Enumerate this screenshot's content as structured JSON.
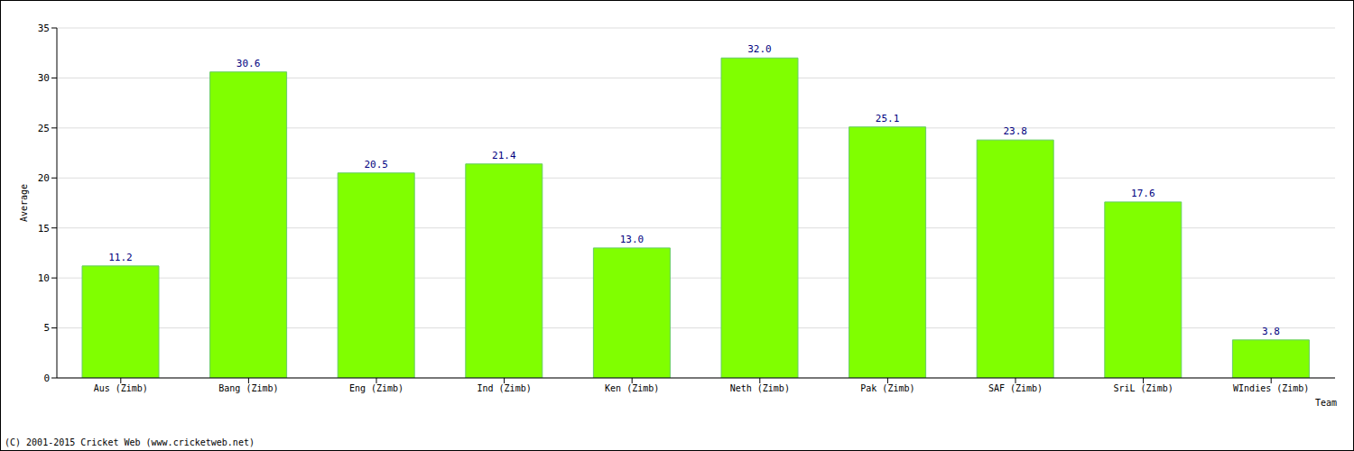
{
  "chart_data": {
    "type": "bar",
    "x_label": "Team",
    "y_label": "Average",
    "annotations": [
      "(C) 2001-2015 Cricket Web (www.cricketweb.net)"
    ],
    "categories": [
      "Aus (Zimb)",
      "Bang (Zimb)",
      "Eng (Zimb)",
      "Ind (Zimb)",
      "Ken (Zimb)",
      "Neth (Zimb)",
      "Pak (Zimb)",
      "SAF (Zimb)",
      "SriL (Zimb)",
      "WIndies (Zimb)"
    ],
    "values": [
      11.2,
      30.6,
      20.5,
      21.4,
      13.0,
      32.0,
      25.1,
      23.8,
      17.6,
      3.8
    ],
    "value_labels": [
      "11.2",
      "30.6",
      "20.5",
      "21.4",
      "13.0",
      "32.0",
      "25.1",
      "23.8",
      "17.6",
      "3.8"
    ],
    "color": "#80ff00",
    "ylim": [
      0,
      35
    ],
    "yticks": [
      0,
      5,
      10,
      15,
      20,
      25,
      30,
      35
    ],
    "grid": true,
    "data_labels": true
  }
}
